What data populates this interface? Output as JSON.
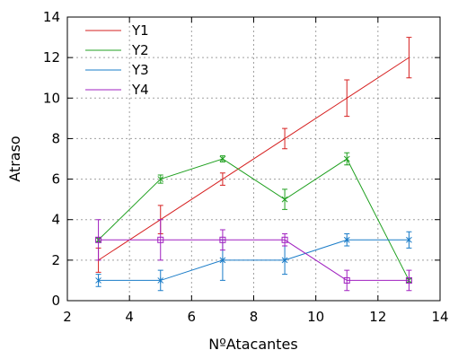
{
  "chart_data": {
    "type": "line",
    "xlabel": "NºAtacantes",
    "ylabel": "Atraso",
    "xlim": [
      2,
      14
    ],
    "ylim": [
      0,
      14
    ],
    "xticks": [
      "2",
      "4",
      "6",
      "8",
      "10",
      "12",
      "14"
    ],
    "yticks": [
      "0",
      "2",
      "4",
      "6",
      "8",
      "10",
      "12",
      "14"
    ],
    "grid": true,
    "legend_position": "top-left",
    "series": [
      {
        "name": "Y1",
        "color": "#d62020",
        "marker": "none",
        "x": [
          3,
          5,
          7,
          9,
          11,
          13
        ],
        "y": [
          2,
          4,
          6,
          8,
          10,
          12
        ],
        "err": [
          0.6,
          0.7,
          0.3,
          0.5,
          0.9,
          1.0
        ]
      },
      {
        "name": "Y2",
        "color": "#20a020",
        "marker": "x",
        "x": [
          3,
          5,
          7,
          9,
          11,
          13
        ],
        "y": [
          3,
          6,
          7,
          5,
          7,
          1
        ],
        "err": [
          0.1,
          0.2,
          0.15,
          0.5,
          0.3,
          0.1
        ]
      },
      {
        "name": "Y3",
        "color": "#1a7cc8",
        "marker": "star",
        "x": [
          3,
          5,
          7,
          9,
          11,
          13
        ],
        "y": [
          1,
          1,
          2,
          2,
          3,
          3
        ],
        "err": [
          0.3,
          0.5,
          1.0,
          0.7,
          0.3,
          0.4
        ]
      },
      {
        "name": "Y4",
        "color": "#a020c0",
        "marker": "square",
        "x": [
          3,
          5,
          7,
          9,
          11,
          13
        ],
        "y": [
          3,
          3,
          3,
          3,
          1,
          1
        ],
        "err": [
          1.0,
          1.0,
          0.5,
          0.3,
          0.5,
          0.5
        ]
      }
    ]
  }
}
